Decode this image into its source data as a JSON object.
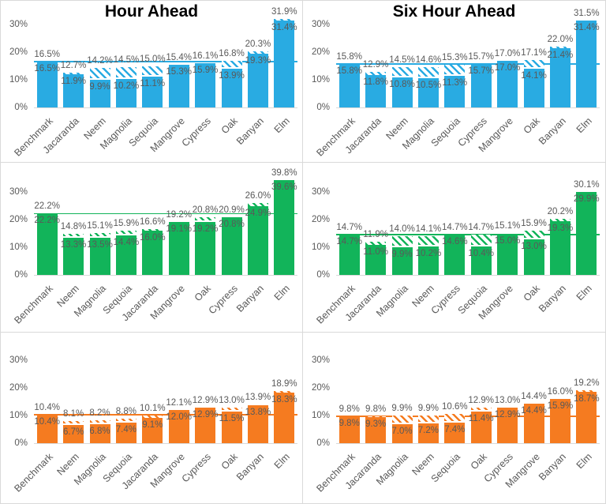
{
  "theme": {
    "background": "#ffffff",
    "divider_color": "#d9d9d9",
    "axis_line_color": "#d9d9d9",
    "label_color": "#595959",
    "title_color": "#000000"
  },
  "chart_data": [
    {
      "type": "bar",
      "position": "top-left",
      "title": "Hour Ahead",
      "color": "#29abe2",
      "ylim": [
        0,
        34
      ],
      "y_ticks": [
        0,
        10,
        20,
        30
      ],
      "y_tick_labels": [
        "0%",
        "10%",
        "20%",
        "30%"
      ],
      "grid": false,
      "benchmark_line": 16.5,
      "categories": [
        "Benchmark",
        "Jacaranda",
        "Neem",
        "Magnolia",
        "Sequoia",
        "Mangrove",
        "Cypress",
        "Oak",
        "Banyan",
        "Elm"
      ],
      "series": [
        {
          "name": "total-with-hatched-top",
          "values": [
            16.5,
            12.7,
            14.2,
            14.5,
            15.0,
            15.4,
            16.1,
            16.8,
            20.3,
            31.9
          ]
        },
        {
          "name": "solid-portion",
          "values": [
            16.5,
            11.9,
            9.9,
            10.2,
            11.1,
            15.3,
            15.9,
            13.9,
            19.3,
            31.4
          ]
        }
      ]
    },
    {
      "type": "bar",
      "position": "top-right",
      "title": "Six Hour Ahead",
      "color": "#29abe2",
      "ylim": [
        0,
        34
      ],
      "y_ticks": [
        0,
        10,
        20,
        30
      ],
      "y_tick_labels": [
        "0%",
        "10%",
        "20%",
        "30%"
      ],
      "grid": false,
      "benchmark_line": 15.8,
      "categories": [
        "Benchmark",
        "Jacaranda",
        "Neem",
        "Magnolia",
        "Sequoia",
        "Cypress",
        "Mangrove",
        "Oak",
        "Banyan",
        "Elm"
      ],
      "series": [
        {
          "name": "total-with-hatched-top",
          "values": [
            15.8,
            12.9,
            14.5,
            14.6,
            15.3,
            15.7,
            17.0,
            17.1,
            22.0,
            31.5
          ]
        },
        {
          "name": "solid-portion",
          "values": [
            15.8,
            11.8,
            10.8,
            10.5,
            11.3,
            15.7,
            17.0,
            14.1,
            21.4,
            31.4
          ]
        }
      ]
    },
    {
      "type": "bar",
      "position": "middle-left",
      "title": "",
      "color": "#12b45a",
      "ylim": [
        0,
        34
      ],
      "y_ticks": [
        0,
        10,
        20,
        30
      ],
      "y_tick_labels": [
        "0%",
        "10%",
        "20%",
        "30%"
      ],
      "grid": false,
      "benchmark_line": 22.2,
      "categories": [
        "Benchmark",
        "Neem",
        "Magnolia",
        "Sequoia",
        "Jacaranda",
        "Mangrove",
        "Oak",
        "Cypress",
        "Banyan",
        "Elm"
      ],
      "series": [
        {
          "name": "total-with-hatched-top",
          "values": [
            22.2,
            14.8,
            15.1,
            15.9,
            16.6,
            19.2,
            20.8,
            20.9,
            26.0,
            39.8
          ]
        },
        {
          "name": "solid-portion",
          "values": [
            22.2,
            13.3,
            13.5,
            14.4,
            16.0,
            19.1,
            19.2,
            20.8,
            24.9,
            39.6
          ]
        }
      ]
    },
    {
      "type": "bar",
      "position": "middle-right",
      "title": "",
      "color": "#12b45a",
      "ylim": [
        0,
        34
      ],
      "y_ticks": [
        0,
        10,
        20,
        30
      ],
      "y_tick_labels": [
        "0%",
        "10%",
        "20%",
        "30%"
      ],
      "grid": false,
      "benchmark_line": 14.7,
      "categories": [
        "Benchmark",
        "Jacaranda",
        "Magnolia",
        "Neem",
        "Cypress",
        "Sequoia",
        "Mangrove",
        "Oak",
        "Banyan",
        "Elm"
      ],
      "series": [
        {
          "name": "total-with-hatched-top",
          "values": [
            14.7,
            11.9,
            14.0,
            14.1,
            14.7,
            14.7,
            15.1,
            15.9,
            20.2,
            30.1
          ]
        },
        {
          "name": "solid-portion",
          "values": [
            14.7,
            11.0,
            9.9,
            10.2,
            14.6,
            10.4,
            15.0,
            13.0,
            19.3,
            29.9
          ]
        }
      ]
    },
    {
      "type": "bar",
      "position": "bottom-left",
      "title": "",
      "color": "#f57b20",
      "ylim": [
        0,
        34
      ],
      "y_ticks": [
        0,
        10,
        20,
        30
      ],
      "y_tick_labels": [
        "0%",
        "10%",
        "20%",
        "30%"
      ],
      "grid": false,
      "benchmark_line": 10.4,
      "categories": [
        "Benchmark",
        "Neem",
        "Magnolia",
        "Sequoia",
        "Jacaranda",
        "Mangrove",
        "Cypress",
        "Oak",
        "Banyan",
        "Elm"
      ],
      "series": [
        {
          "name": "total-with-hatched-top",
          "values": [
            10.4,
            8.1,
            8.2,
            8.8,
            10.1,
            12.1,
            12.9,
            13.0,
            13.9,
            18.9
          ]
        },
        {
          "name": "solid-portion",
          "values": [
            10.4,
            6.7,
            6.8,
            7.4,
            9.1,
            12.0,
            12.9,
            11.5,
            13.8,
            18.3
          ]
        }
      ]
    },
    {
      "type": "bar",
      "position": "bottom-right",
      "title": "",
      "color": "#f57b20",
      "ylim": [
        0,
        34
      ],
      "y_ticks": [
        0,
        10,
        20,
        30
      ],
      "y_tick_labels": [
        "0%",
        "10%",
        "20%",
        "30%"
      ],
      "grid": false,
      "benchmark_line": 9.8,
      "categories": [
        "Benchmark",
        "Jacaranda",
        "Magnolia",
        "Neem",
        "Sequoia",
        "Oak",
        "Cypress",
        "Mangrove",
        "Banyan",
        "Elm"
      ],
      "series": [
        {
          "name": "total-with-hatched-top",
          "values": [
            9.8,
            9.8,
            9.9,
            9.9,
            10.6,
            12.9,
            13.0,
            14.4,
            16.0,
            19.2
          ]
        },
        {
          "name": "solid-portion",
          "values": [
            9.8,
            9.3,
            7.0,
            7.2,
            7.4,
            11.4,
            12.9,
            14.4,
            15.9,
            18.7
          ]
        }
      ]
    }
  ]
}
